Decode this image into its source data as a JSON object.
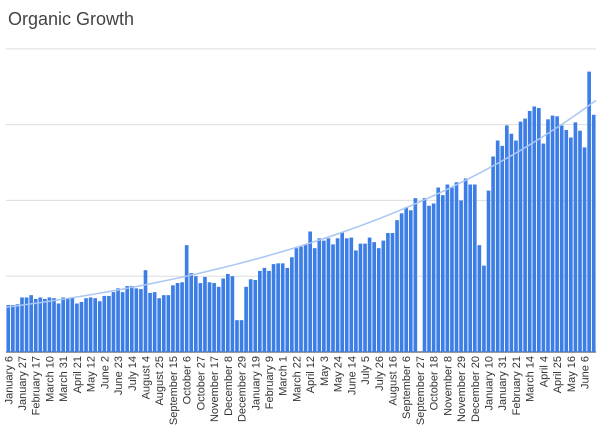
{
  "chart_data": {
    "type": "bar",
    "title": "Organic Growth",
    "color": "#3d7ee6",
    "grid": true,
    "ylim": [
      0,
      4.6
    ],
    "yticks": [
      0,
      1,
      2,
      3,
      4
    ],
    "trend": {
      "type": "exponential",
      "color": "#a9c6f4",
      "values": [
        0.59,
        3.32
      ]
    },
    "categories": [
      "January 6",
      null,
      null,
      "January 27",
      null,
      null,
      "February 17",
      null,
      null,
      "March 10",
      null,
      null,
      "March 31",
      null,
      null,
      "April 21",
      null,
      null,
      "May 12",
      null,
      null,
      "June 2",
      null,
      null,
      "June 23",
      null,
      null,
      "July 14",
      null,
      null,
      "August 4",
      null,
      null,
      "August 25",
      null,
      null,
      "September 15",
      null,
      null,
      "October 6",
      null,
      null,
      "October 27",
      null,
      null,
      "November 17",
      null,
      null,
      "December 8",
      null,
      null,
      "December 29",
      null,
      null,
      "January 19",
      null,
      null,
      "February 9",
      null,
      null,
      "March 1",
      null,
      null,
      "March 22",
      null,
      null,
      "April 12",
      null,
      null,
      "May 3",
      null,
      null,
      "May 24",
      null,
      null,
      "June 14",
      null,
      null,
      "July 5",
      null,
      null,
      "July 26",
      null,
      null,
      "August 16",
      null,
      null,
      "September 6",
      null,
      null,
      "September 27",
      null,
      null,
      "October 18",
      null,
      null,
      "November 8",
      null,
      null,
      "November 29",
      null,
      null,
      "December 20",
      null,
      null,
      "January 10",
      null,
      null,
      "January 31",
      null,
      null,
      "February 21",
      null,
      null,
      "March 14",
      null,
      null,
      "April 4",
      null,
      null,
      "April 25",
      null,
      null,
      "May 16",
      null,
      null,
      "June 6",
      null,
      null
    ],
    "values": [
      0.62,
      0.62,
      0.63,
      0.72,
      0.72,
      0.75,
      0.7,
      0.72,
      0.7,
      0.72,
      0.71,
      0.64,
      0.72,
      0.71,
      0.72,
      0.64,
      0.66,
      0.71,
      0.72,
      0.71,
      0.67,
      0.74,
      0.74,
      0.79,
      0.84,
      0.79,
      0.87,
      0.87,
      0.84,
      0.83,
      1.08,
      0.78,
      0.79,
      0.71,
      0.75,
      0.75,
      0.88,
      0.91,
      0.92,
      1.41,
      1.04,
      1.0,
      0.91,
      0.99,
      0.92,
      0.91,
      0.86,
      0.97,
      1.03,
      1.0,
      0.42,
      0.42,
      0.86,
      0.96,
      0.95,
      1.07,
      1.11,
      1.07,
      1.16,
      1.17,
      1.17,
      1.11,
      1.25,
      1.37,
      1.39,
      1.42,
      1.59,
      1.37,
      1.5,
      1.47,
      1.5,
      1.42,
      1.5,
      1.58,
      1.5,
      1.51,
      1.34,
      1.43,
      1.43,
      1.51,
      1.45,
      1.37,
      1.47,
      1.57,
      1.57,
      1.74,
      1.83,
      1.91,
      1.87,
      2.03,
      0,
      2.03,
      1.93,
      1.96,
      2.17,
      2.07,
      2.21,
      2.17,
      2.24,
      2.0,
      2.29,
      2.21,
      2.21,
      1.41,
      1.14,
      2.13,
      2.58,
      2.79,
      2.72,
      2.99,
      2.88,
      2.79,
      3.04,
      3.08,
      3.18,
      3.24,
      3.22,
      2.75,
      3.07,
      3.12,
      3.11,
      2.99,
      2.93,
      2.83,
      3.03,
      2.92,
      2.7,
      3.7,
      3.13
    ]
  }
}
